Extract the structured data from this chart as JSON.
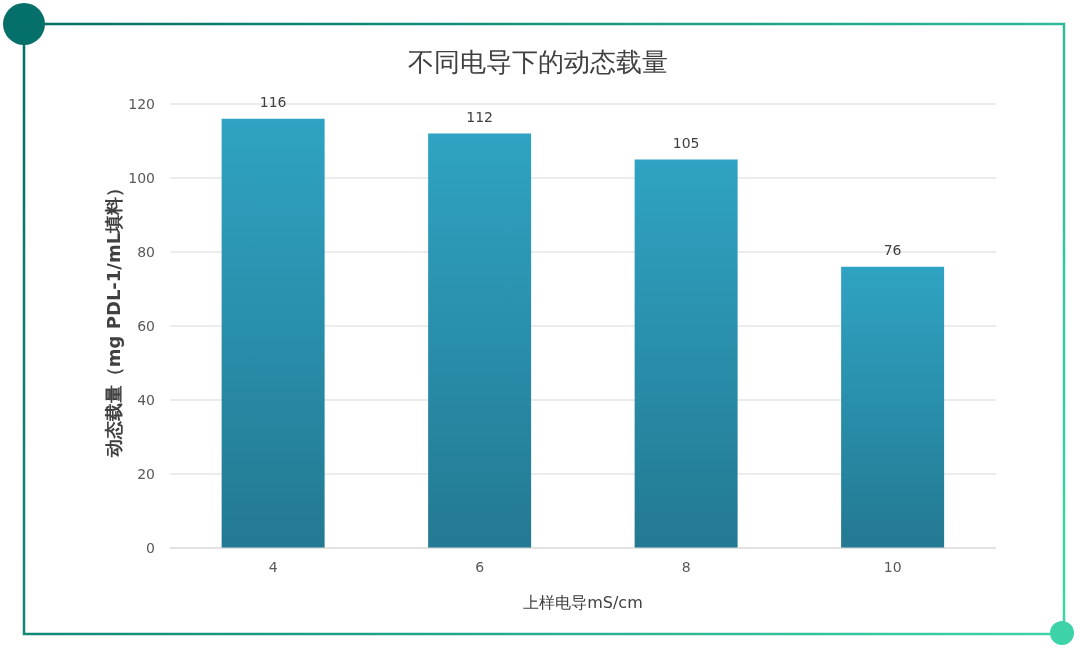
{
  "chart_data": {
    "type": "bar",
    "title": "不同电导下的动态载量",
    "xlabel": "上样电导mS/cm",
    "ylabel": "动态载量（mg PDL-1/mL填料）",
    "categories": [
      "4",
      "6",
      "8",
      "10"
    ],
    "values": [
      116,
      112,
      105,
      76
    ],
    "color": "#2b94b1",
    "ylim": [
      0,
      120
    ],
    "yticks": [
      0,
      20,
      40,
      60,
      80,
      100,
      120
    ],
    "grid": "y",
    "data_labels": true,
    "legend": false
  }
}
